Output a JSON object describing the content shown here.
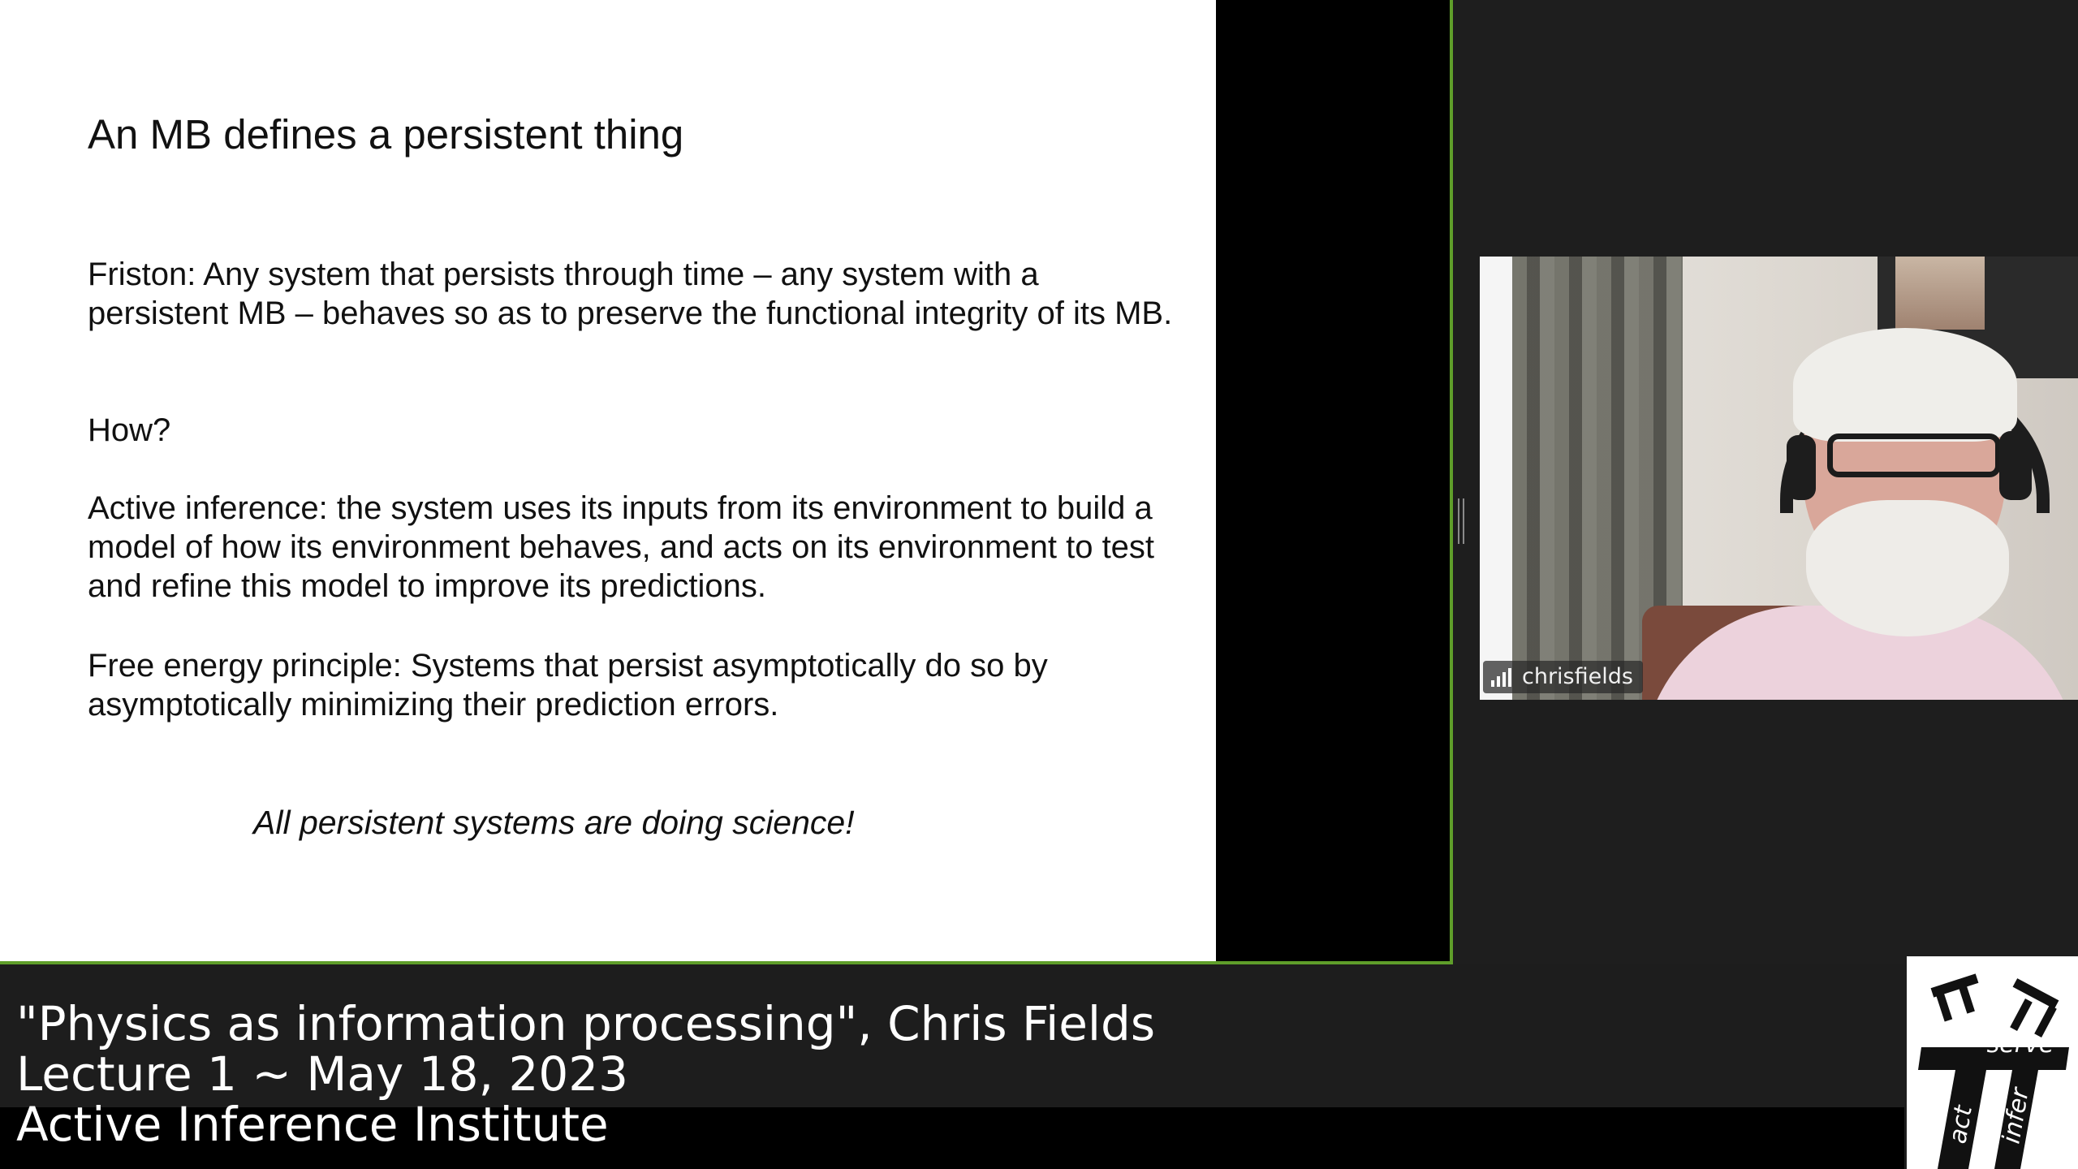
{
  "slide": {
    "title": "An MB defines a persistent thing",
    "paragraphs": [
      "Friston: Any system that persists through time – any system with a persistent MB – behaves so as to preserve the functional integrity of its MB.",
      "How?",
      "Active inference: the system uses its inputs from its environment to build a model of how its environment behaves, and acts on its environment to test and refine this model to improve its predictions.",
      "Free energy principle: Systems that persist asymptotically do so by asymptotically minimizing their prediction errors."
    ],
    "tagline": "All persistent systems are doing science!"
  },
  "participant": {
    "name": "chrisfields",
    "signal_icon": "signal-bars-icon"
  },
  "caption": {
    "line1": "\"Physics as information processing\", Chris Fields",
    "line2": "Lecture 1 ~ May 18, 2023",
    "line3": "Active Inference Institute"
  },
  "logo": {
    "words": [
      "serve",
      "act",
      "infer"
    ]
  },
  "colors": {
    "share_border": "#5f9e2a",
    "background": "#1e1e1e",
    "caption_band": "#1d1d1d"
  }
}
